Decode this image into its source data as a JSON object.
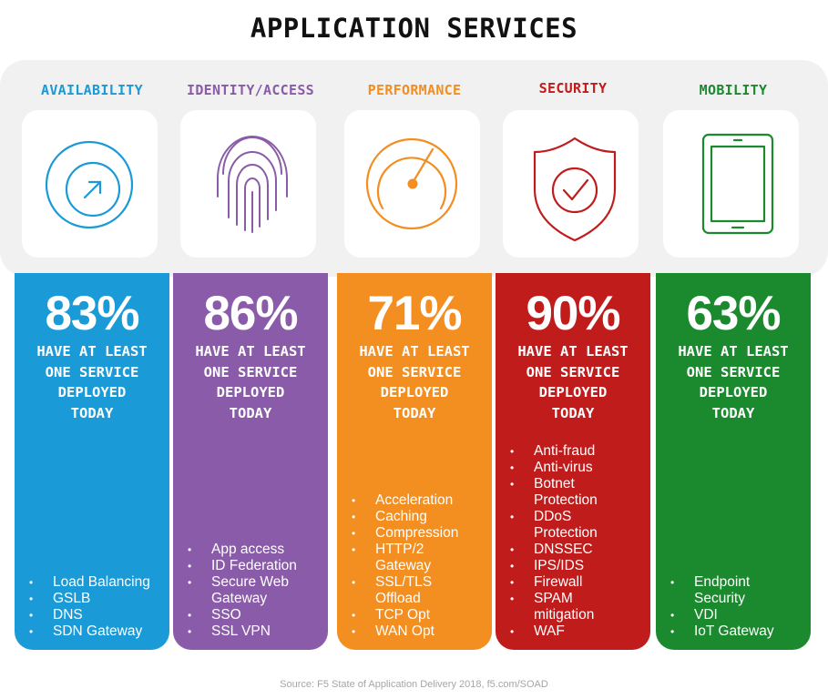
{
  "title": "APPLICATION SERVICES",
  "columns": [
    {
      "category": "AVAILABILITY",
      "color": "#1a9ad7",
      "icon": "arrow-circle-icon",
      "percent": "83%",
      "subtitle": [
        "HAVE AT LEAST",
        "ONE SERVICE",
        "DEPLOYED",
        "TODAY"
      ],
      "items": [
        "Load Balancing",
        "GSLB",
        "DNS",
        "SDN Gateway"
      ]
    },
    {
      "category": "IDENTITY/ACCESS",
      "color": "#8a5ba8",
      "icon": "fingerprint-icon",
      "percent": "86%",
      "subtitle": [
        "HAVE AT LEAST",
        "ONE SERVICE",
        "DEPLOYED",
        "TODAY"
      ],
      "items": [
        "App access",
        "ID Federation",
        "Secure Web Gateway",
        "SSO",
        "SSL VPN"
      ]
    },
    {
      "category": "PERFORMANCE",
      "color": "#f38e21",
      "icon": "speedometer-icon",
      "percent": "71%",
      "subtitle": [
        "HAVE AT LEAST",
        "ONE SERVICE",
        "DEPLOYED",
        "TODAY"
      ],
      "items": [
        "Acceleration",
        "Caching",
        "Compression",
        "HTTP/2 Gateway",
        "SSL/TLS Offload",
        "TCP Opt",
        "WAN Opt"
      ]
    },
    {
      "category": "SECURITY",
      "color": "#c01c1c",
      "icon": "shield-check-icon",
      "percent": "90%",
      "subtitle": [
        "HAVE AT LEAST",
        "ONE SERVICE",
        "DEPLOYED",
        "TODAY"
      ],
      "items": [
        "Anti-fraud",
        "Anti-virus",
        "Botnet Protection",
        "DDoS Protection",
        "DNSSEC",
        "IPS/IDS",
        "Firewall",
        "SPAM mitigation",
        "WAF"
      ]
    },
    {
      "category": "MOBILITY",
      "color": "#1b8a2e",
      "icon": "tablet-icon",
      "percent": "63%",
      "subtitle": [
        "HAVE AT LEAST",
        "ONE SERVICE",
        "DEPLOYED",
        "TODAY"
      ],
      "items": [
        "Endpoint Security",
        "VDI",
        "IoT Gateway"
      ]
    }
  ],
  "source": "Source: F5 State of Application Delivery 2018, f5.com/SOAD"
}
